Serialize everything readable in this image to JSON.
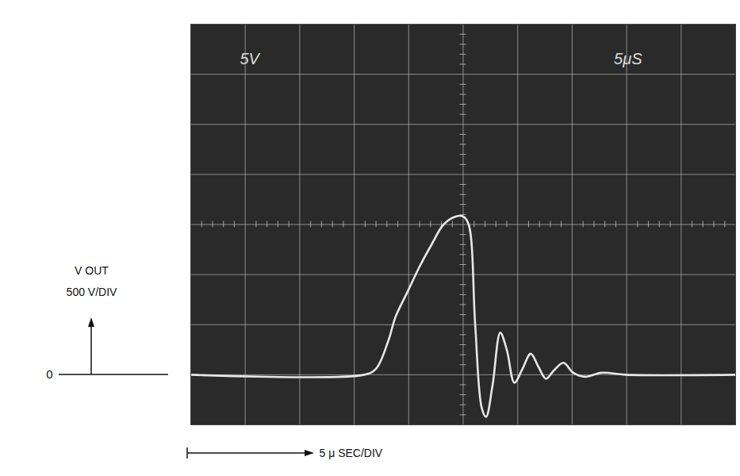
{
  "chart_data": {
    "type": "line",
    "x": [
      0,
      15.9,
      17.0,
      18.1,
      18.8,
      19.9,
      21.0,
      22.1,
      23.2,
      24.3,
      25.0,
      25.5,
      26.1,
      26.7,
      27.1,
      27.7,
      28.4,
      29.0,
      29.7,
      30.4,
      31.2,
      31.9,
      32.6,
      33.3,
      34.2,
      35.1,
      36.2,
      37.7,
      39.9,
      50
    ],
    "values": [
      0,
      0,
      60,
      330,
      580,
      830,
      1080,
      1300,
      1500,
      1580,
      1580,
      1500,
      500,
      -330,
      -420,
      -100,
      420,
      250,
      -80,
      50,
      210,
      80,
      -40,
      40,
      120,
      20,
      -20,
      20,
      0,
      0
    ],
    "color": "#e6e6e6",
    "xlim": [
      0,
      50
    ],
    "ylim": [
      -500,
      3500
    ],
    "xticks": [
      0,
      5,
      10,
      15,
      20,
      25,
      30,
      35,
      40,
      45,
      50
    ],
    "yticks": [
      -500,
      0,
      500,
      1000,
      1500,
      2000,
      2500,
      3000,
      3500
    ],
    "grid": true,
    "tick_labels": false,
    "screen_labels": [
      "5V",
      "5μS"
    ],
    "ylabel": [
      "V OUT",
      "500 V/DIV"
    ],
    "y_marker": {
      "value": 0,
      "label": "0"
    },
    "xlabel": "5 μ SEC/DIV"
  }
}
